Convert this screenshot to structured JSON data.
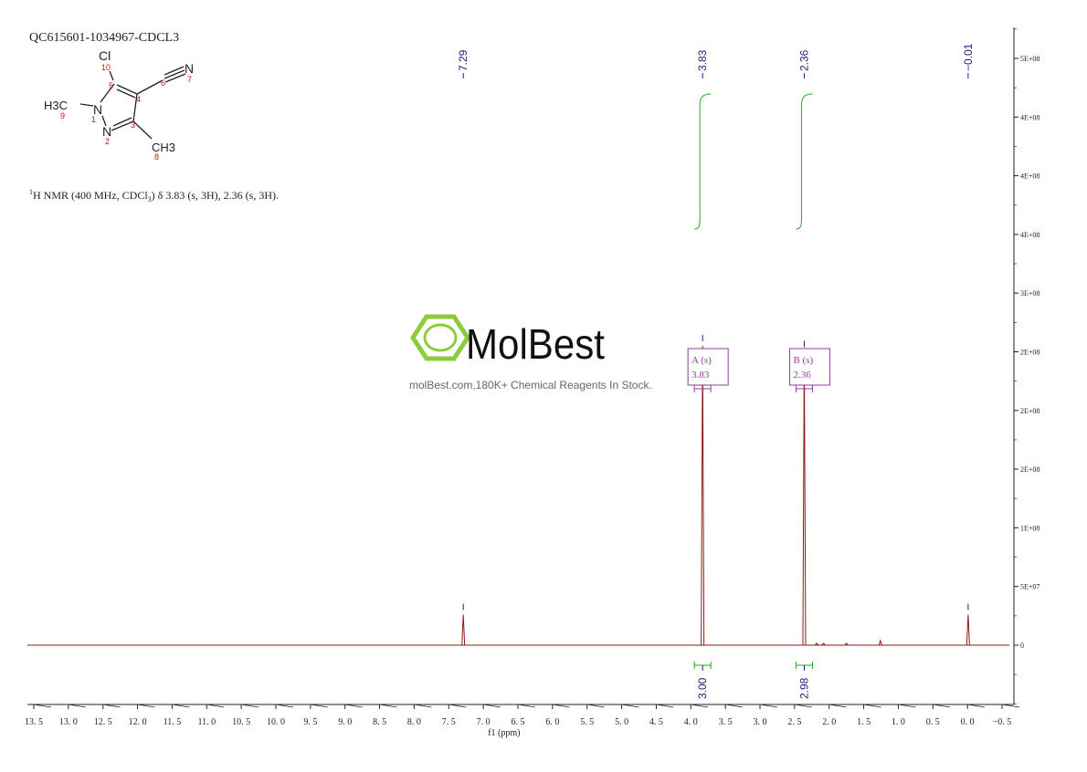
{
  "sample_id": "QC615601-1034967-CDCL3",
  "nmr_description": {
    "nucleus_sup": "1",
    "text": "H NMR (400 MHz, CDCl",
    "sub": "3",
    "text2": ") δ 3.83 (s, 3H), 2.36 (s, 3H)."
  },
  "molecule": {
    "atoms": {
      "cl": "Cl",
      "n1": "N",
      "n2": "N",
      "n_nitrile": "N",
      "h3c": "H3C",
      "ch3": "CH3"
    },
    "numbers": [
      "1",
      "2",
      "3",
      "4",
      "5",
      "6",
      "7",
      "8",
      "9",
      "10"
    ]
  },
  "watermark": {
    "brand": "MolBest",
    "tagline": "molBest.com,180K+ Chemical Reagents In Stock."
  },
  "chart_data": {
    "type": "line",
    "xlabel": "f1 (ppm)",
    "xlim": [
      13.5,
      -0.5
    ],
    "x_axis_reversed": true,
    "x_ticks": [
      "13.5",
      "13.0",
      "12.5",
      "12.0",
      "11.5",
      "11.0",
      "10.5",
      "10.0",
      "9.5",
      "9.0",
      "8.5",
      "8.0",
      "7.5",
      "7.0",
      "6.5",
      "6.0",
      "5.5",
      "5.0",
      "4.5",
      "4.0",
      "3.5",
      "3.0",
      "2.5",
      "2.0",
      "1.5",
      "1.0",
      "0.5",
      "0.0",
      "-0.5"
    ],
    "y_ticks": [
      "5E+08",
      "4E+08",
      "4E+08",
      "4E+08",
      "3E+08",
      "2E+08",
      "2E+08",
      "2E+08",
      "1E+08",
      "5E+07",
      "0"
    ],
    "ylim": [
      -50000000.0,
      530000000.0
    ],
    "series_color": "#8b1a1a",
    "peaks": [
      {
        "ppm": 7.29,
        "height": 26000000.0,
        "label": "7.29"
      },
      {
        "ppm": 3.83,
        "height": 255000000.0,
        "label": "3.83"
      },
      {
        "ppm": 2.36,
        "height": 250000000.0,
        "label": "2.36"
      },
      {
        "ppm": 1.26,
        "height": 4000000.0,
        "label": ""
      },
      {
        "ppm": -0.01,
        "height": 26000000.0,
        "label": "-0.01"
      }
    ],
    "peak_labels": [
      "7.29",
      "3.83",
      "2.36",
      "-0.01"
    ],
    "multiplets": [
      {
        "id": "A",
        "mult": "(s)",
        "shift": "3.83",
        "ppm": 3.83
      },
      {
        "id": "B",
        "mult": "(s)",
        "shift": "2.36",
        "ppm": 2.36
      }
    ],
    "integrals": [
      {
        "ppm": 3.83,
        "value": "3.00"
      },
      {
        "ppm": 2.36,
        "value": "2.98"
      }
    ]
  }
}
